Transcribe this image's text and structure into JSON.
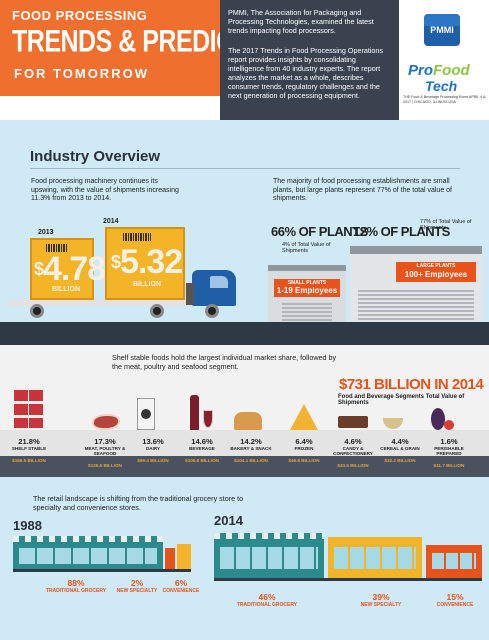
{
  "header": {
    "title_line1": "FOOD PROCESSING",
    "title_line2": "TRENDS & PREDICTIONS",
    "title_line3": "FOR TOMORROW",
    "intro_p1": "PMMI, The Association for Packaging and Processing Technologies, examined the latest trends impacting food processors.",
    "intro_p2": "The 2017 Trends in Food Processing Operations report provides insights by consolidating intelligence from 40 industry experts. The report analyzes the market as a whole, describes consumer trends, regulatory challenges and the next generation of processing equipment.",
    "pmmi_logo": "PMMI",
    "profood_pro": "Pro",
    "profood_food": "Food",
    "profood_tech": "Tech",
    "profood_sub": "THE Food & Beverage Processing Event APRIL 4-6, 2017 | CHICAGO, ILLINOIS USA"
  },
  "industry": {
    "title": "Industry Overview",
    "text_left": "Food processing machinery continues its upswing, with the value of shipments increasing 11.3% from 2013 to 2014.",
    "text_right": "The majority of food processing establishments are small plants, but large plants represent 77% of the total value of shipments.",
    "year_2013": "2013",
    "year_2014": "2014",
    "value_2013": "4.78",
    "value_2014": "5.32",
    "dollar": "$",
    "billion": "BILLION",
    "small_pct": "66% OF PLANTS",
    "small_note": "4% of Total Value of Shipments",
    "small_label": "SMALL PLANTS",
    "small_emp": "1-19 Employees",
    "large_pct": "12% OF PLANTS",
    "large_note": "77% of Total Value of Shipments",
    "large_label": "LARGE PLANTS",
    "large_emp": "100+ Employees"
  },
  "shelf": {
    "text": "Shelf stable foods hold the largest individual market share, followed by the meat, poultry and seafood segment.",
    "total": "$731 BILLION IN 2014",
    "total_sub": "Food and Beverage Segments Total Value of Shipments",
    "categories": [
      {
        "pct": "21.8%",
        "name": "SHELF STABLE",
        "val": "$159.5 BILLION"
      },
      {
        "pct": "17.3%",
        "name": "MEAT, POULTRY & SEAFOOD",
        "val": "$126.5 BILLION"
      },
      {
        "pct": "13.6%",
        "name": "DAIRY",
        "val": "$99.4 BILLION"
      },
      {
        "pct": "14.6%",
        "name": "BEVERAGE",
        "val": "$106.8 BILLION"
      },
      {
        "pct": "14.2%",
        "name": "BAKERY & SNACK",
        "val": "$104.1 BILLION"
      },
      {
        "pct": "6.4%",
        "name": "FROZEN",
        "val": "$46.8 BILLION"
      },
      {
        "pct": "4.6%",
        "name": "CANDY & CONFECTIONERY",
        "val": "$33.6 BILLION"
      },
      {
        "pct": "4.4%",
        "name": "CEREAL & GRAIN",
        "val": "$32.2 BILLION"
      },
      {
        "pct": "1.6%",
        "name": "PERISHABLE PREPARED",
        "val": "$11.7 BILLION"
      }
    ]
  },
  "retail": {
    "text": "The retail landscape is shifting from the traditional grocery store to specialty and convenience stores.",
    "year_1988": "1988",
    "year_2014": "2014",
    "y1988": [
      {
        "pct": "88%",
        "name": "TRADITIONAL GROCERY"
      },
      {
        "pct": "2%",
        "name": "NEW SPECIALTY"
      },
      {
        "pct": "6%",
        "name": "CONVENIENCE"
      }
    ],
    "y2014": [
      {
        "pct": "46%",
        "name": "TRADITIONAL GROCERY"
      },
      {
        "pct": "39%",
        "name": "NEW SPECIALTY"
      },
      {
        "pct": "15%",
        "name": "CONVENIENCE"
      }
    ]
  },
  "colors": {
    "orange": "#ef6f2e",
    "dark": "#3a4250",
    "sky": "#cfe9f5",
    "gold": "#f4b427",
    "teal": "#2a8a8c"
  }
}
